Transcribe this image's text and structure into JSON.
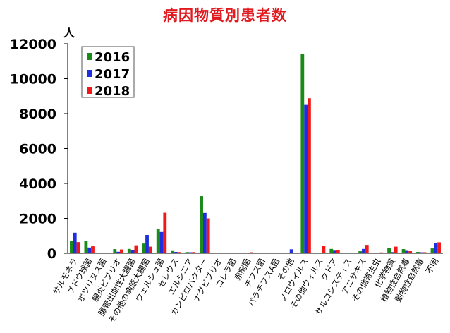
{
  "chart_data": {
    "type": "bar",
    "title": "病因物質別患者数",
    "ylabel": "人",
    "xlabel": "",
    "ylim": [
      0,
      12000
    ],
    "yticks": [
      0,
      2000,
      4000,
      6000,
      8000,
      10000,
      12000
    ],
    "grid": false,
    "legend_position": "top-left",
    "categories": [
      "サルモネラ",
      "ブドウ球菌",
      "ボツリヌス菌",
      "腸炎ビブリオ",
      "腸管出血性大腸菌",
      "その他の病原大腸菌",
      "ウェルシュ菌",
      "セレウス",
      "エルシニア",
      "カンピロバクター",
      "ナグビブリオ",
      "コレラ菌",
      "赤痢菌",
      "チフス菌",
      "パラチフスA菌",
      "その他",
      "ノロウイルス",
      "その他ウィルス",
      "クドア",
      "サルコシスティス",
      "アニサキス",
      "その他寄生虫",
      "化学物質",
      "植物性自然毒",
      "動物性自然毒",
      "不明"
    ],
    "series": [
      {
        "name": "2016",
        "color": "#1a8a1a",
        "values": [
          700,
          700,
          20,
          240,
          250,
          560,
          1400,
          130,
          70,
          3270,
          0,
          0,
          0,
          0,
          0,
          30,
          11400,
          30,
          250,
          0,
          120,
          40,
          300,
          240,
          80,
          280
        ]
      },
      {
        "name": "2017",
        "color": "#1f2fe0",
        "values": [
          1180,
          330,
          20,
          90,
          170,
          1050,
          1220,
          80,
          60,
          2310,
          0,
          0,
          0,
          0,
          0,
          230,
          8500,
          30,
          150,
          0,
          250,
          40,
          70,
          140,
          60,
          600
        ]
      },
      {
        "name": "2018",
        "color": "#f01818",
        "values": [
          640,
          400,
          30,
          220,
          460,
          380,
          2320,
          70,
          70,
          2000,
          0,
          0,
          60,
          0,
          0,
          30,
          8880,
          420,
          170,
          20,
          480,
          50,
          380,
          120,
          60,
          630
        ]
      }
    ]
  }
}
